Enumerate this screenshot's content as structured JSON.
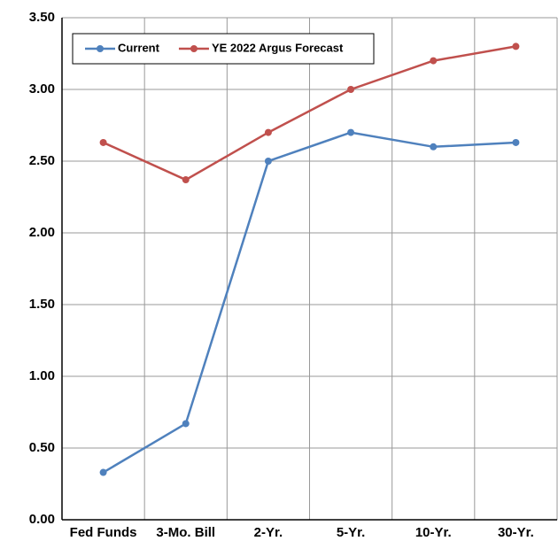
{
  "chart_data": {
    "type": "line",
    "categories": [
      "Fed Funds",
      "3-Mo. Bill",
      "2-Yr.",
      "5-Yr.",
      "10-Yr.",
      "30-Yr."
    ],
    "series": [
      {
        "name": "Current",
        "color": "#4f81bd",
        "values": [
          0.33,
          0.67,
          2.5,
          2.7,
          2.6,
          2.63
        ]
      },
      {
        "name": "YE 2022 Argus Forecast",
        "color": "#c0504d",
        "values": [
          2.63,
          2.37,
          2.7,
          3.0,
          3.2,
          3.3
        ]
      }
    ],
    "ylim": [
      0,
      3.5
    ],
    "yticks": [
      {
        "value": 0,
        "label": "0.00"
      },
      {
        "value": 0.5,
        "label": "0.50"
      },
      {
        "value": 1,
        "label": "1.00"
      },
      {
        "value": 1.5,
        "label": "1.50"
      },
      {
        "value": 2,
        "label": "2.00"
      },
      {
        "value": 2.5,
        "label": "2.50"
      },
      {
        "value": 3,
        "label": "3.00"
      },
      {
        "value": 3.5,
        "label": "3.50"
      }
    ],
    "grid": true,
    "legend": "upper left"
  }
}
